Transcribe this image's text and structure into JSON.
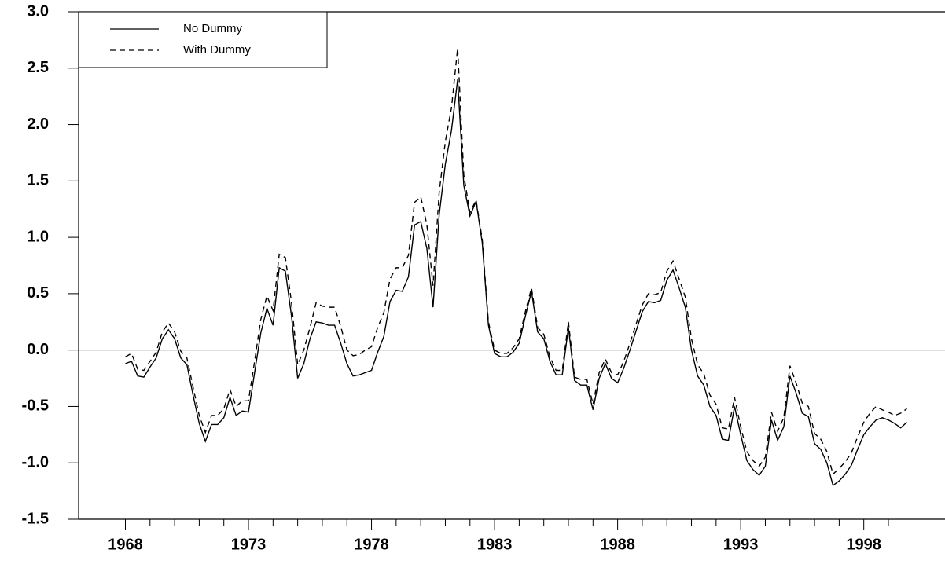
{
  "chart_data": {
    "type": "line",
    "x": [
      1968,
      1968.25,
      1968.5,
      1968.75,
      1969,
      1969.25,
      1969.5,
      1969.75,
      1970,
      1970.25,
      1970.5,
      1970.75,
      1971,
      1971.25,
      1971.5,
      1971.75,
      1972,
      1972.25,
      1972.5,
      1972.75,
      1973,
      1973.25,
      1973.5,
      1973.75,
      1974,
      1974.25,
      1974.5,
      1974.75,
      1975,
      1975.25,
      1975.5,
      1975.75,
      1976,
      1976.25,
      1976.5,
      1976.75,
      1977,
      1977.25,
      1977.5,
      1977.75,
      1978,
      1978.25,
      1978.5,
      1978.75,
      1979,
      1979.25,
      1979.5,
      1979.75,
      1980,
      1980.25,
      1980.5,
      1980.75,
      1981,
      1981.25,
      1981.5,
      1981.75,
      1982,
      1982.25,
      1982.5,
      1982.75,
      1983,
      1983.25,
      1983.5,
      1983.75,
      1984,
      1984.25,
      1984.5,
      1984.75,
      1985,
      1985.25,
      1985.5,
      1985.75,
      1986,
      1986.25,
      1986.5,
      1986.75,
      1987,
      1987.25,
      1987.5,
      1987.75,
      1988,
      1988.25,
      1988.5,
      1988.75,
      1989,
      1989.25,
      1989.5,
      1989.75,
      1990,
      1990.25,
      1990.5,
      1990.75,
      1991,
      1991.25,
      1991.5,
      1991.75,
      1992,
      1992.25,
      1992.5,
      1992.75,
      1993,
      1993.25,
      1993.5,
      1993.75,
      1994,
      1994.25,
      1994.5,
      1994.75,
      1995,
      1995.25,
      1995.5,
      1995.75,
      1996,
      1996.25,
      1996.5,
      1996.75,
      1997,
      1997.25,
      1997.5,
      1997.75,
      1998,
      1998.25,
      1998.5,
      1998.75,
      1999,
      1999.25,
      1999.5,
      1999.75
    ],
    "series": [
      {
        "name": "No Dummy",
        "color": "#000000",
        "dash": false,
        "values": [
          -0.12,
          -0.1,
          -0.23,
          -0.24,
          -0.15,
          -0.07,
          0.1,
          0.18,
          0.1,
          -0.07,
          -0.13,
          -0.4,
          -0.65,
          -0.81,
          -0.66,
          -0.66,
          -0.6,
          -0.42,
          -0.58,
          -0.54,
          -0.55,
          -0.2,
          0.15,
          0.37,
          0.22,
          0.73,
          0.7,
          0.3,
          -0.25,
          -0.12,
          0.1,
          0.25,
          0.24,
          0.22,
          0.22,
          0.06,
          -0.12,
          -0.23,
          -0.22,
          -0.2,
          -0.18,
          -0.02,
          0.12,
          0.43,
          0.53,
          0.52,
          0.65,
          1.11,
          1.14,
          0.9,
          0.38,
          1.2,
          1.65,
          1.95,
          2.4,
          1.46,
          1.19,
          1.32,
          0.95,
          0.22,
          -0.03,
          -0.06,
          -0.06,
          -0.02,
          0.06,
          0.3,
          0.52,
          0.16,
          0.1,
          -0.1,
          -0.22,
          -0.22,
          0.2,
          -0.27,
          -0.31,
          -0.31,
          -0.53,
          -0.25,
          -0.12,
          -0.25,
          -0.29,
          -0.16,
          0.0,
          0.17,
          0.34,
          0.43,
          0.42,
          0.44,
          0.62,
          0.71,
          0.55,
          0.38,
          0.0,
          -0.23,
          -0.31,
          -0.5,
          -0.58,
          -0.79,
          -0.8,
          -0.5,
          -0.75,
          -0.98,
          -1.06,
          -1.11,
          -1.03,
          -0.62,
          -0.8,
          -0.68,
          -0.23,
          -0.38,
          -0.56,
          -0.59,
          -0.83,
          -0.88,
          -1.0,
          -1.2,
          -1.16,
          -1.1,
          -1.02,
          -0.88,
          -0.75,
          -0.68,
          -0.62,
          -0.6,
          -0.62,
          -0.65,
          -0.69,
          -0.64
        ]
      },
      {
        "name": "With Dummy",
        "color": "#000000",
        "dash": true,
        "values": [
          -0.06,
          -0.03,
          -0.17,
          -0.18,
          -0.1,
          -0.02,
          0.16,
          0.24,
          0.16,
          -0.01,
          -0.07,
          -0.33,
          -0.58,
          -0.73,
          -0.58,
          -0.58,
          -0.52,
          -0.35,
          -0.5,
          -0.45,
          -0.45,
          -0.1,
          0.27,
          0.48,
          0.35,
          0.85,
          0.82,
          0.42,
          -0.13,
          0.0,
          0.2,
          0.42,
          0.39,
          0.38,
          0.38,
          0.21,
          0.0,
          -0.05,
          -0.04,
          0.0,
          0.03,
          0.2,
          0.33,
          0.63,
          0.73,
          0.73,
          0.84,
          1.31,
          1.36,
          1.11,
          0.57,
          1.4,
          1.85,
          2.15,
          2.68,
          1.55,
          1.22,
          1.33,
          0.98,
          0.25,
          0.0,
          -0.03,
          -0.03,
          0.02,
          0.1,
          0.34,
          0.55,
          0.2,
          0.14,
          -0.06,
          -0.18,
          -0.18,
          0.25,
          -0.24,
          -0.26,
          -0.26,
          -0.48,
          -0.2,
          -0.08,
          -0.2,
          -0.22,
          -0.1,
          0.06,
          0.23,
          0.4,
          0.5,
          0.49,
          0.51,
          0.7,
          0.79,
          0.63,
          0.47,
          0.1,
          -0.13,
          -0.21,
          -0.4,
          -0.48,
          -0.69,
          -0.7,
          -0.42,
          -0.68,
          -0.9,
          -0.98,
          -1.03,
          -0.95,
          -0.55,
          -0.72,
          -0.6,
          -0.14,
          -0.29,
          -0.47,
          -0.5,
          -0.74,
          -0.79,
          -0.9,
          -1.1,
          -1.05,
          -0.99,
          -0.91,
          -0.77,
          -0.64,
          -0.56,
          -0.5,
          -0.53,
          -0.55,
          -0.58,
          -0.56,
          -0.52
        ]
      }
    ],
    "xlim": [
      1966.1,
      2001.3
    ],
    "xticks": [
      1968,
      1973,
      1978,
      1983,
      1988,
      1993,
      1998
    ],
    "minor_xticks": [
      1969,
      1970,
      1971,
      1972,
      1974,
      1975,
      1976,
      1977,
      1979,
      1980,
      1981,
      1982,
      1984,
      1985,
      1986,
      1987,
      1989,
      1990,
      1991,
      1992,
      1994,
      1995,
      1996,
      1997,
      1999
    ],
    "ylim": [
      -1.5,
      3.0
    ],
    "yticks": [
      {
        "value": -1.5,
        "label": "-1.5"
      },
      {
        "value": -1,
        "label": "-1.0"
      },
      {
        "value": -0.5,
        "label": "-0.5"
      },
      {
        "value": 0,
        "label": "0.0"
      },
      {
        "value": 0.5,
        "label": "0.5"
      },
      {
        "value": 1,
        "label": "1.0"
      },
      {
        "value": 1.5,
        "label": "1.5"
      },
      {
        "value": 2,
        "label": "2.0"
      },
      {
        "value": 2.5,
        "label": "2.5"
      },
      {
        "value": 3,
        "label": "3.0"
      }
    ],
    "reference_line": 0,
    "legend": "upper-left"
  }
}
